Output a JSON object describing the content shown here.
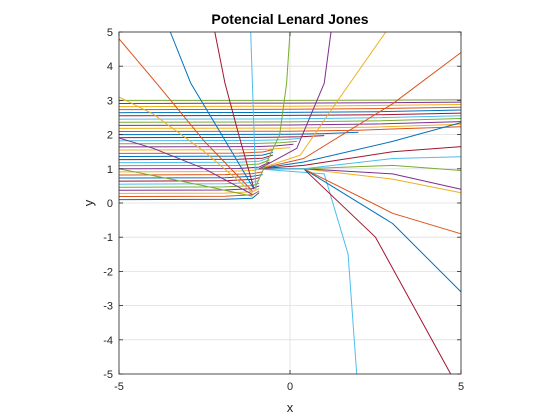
{
  "chart_data": {
    "type": "line",
    "title": "Potencial Lenard Jones",
    "xlabel": "x",
    "ylabel": "y",
    "xlim": [
      -5,
      5
    ],
    "ylim": [
      -5,
      5
    ],
    "xticks": [
      "-5",
      "0",
      "5"
    ],
    "yticks": [
      "-5",
      "-4",
      "-3",
      "-2",
      "-1",
      "0",
      "1",
      "2",
      "3",
      "4",
      "5"
    ],
    "grid": true,
    "colors": [
      "#0072BD",
      "#D95319",
      "#EDB120",
      "#7E2F8E",
      "#77AC30",
      "#4DBEEE",
      "#A2142F"
    ],
    "series": [
      {
        "x": [
          -5,
          -1.9,
          -1.1,
          -0.9
        ],
        "y": [
          0.1,
          0.11,
          0.14,
          0.3
        ]
      },
      {
        "x": [
          -5,
          -1.9,
          -1.1,
          -0.9
        ],
        "y": [
          0.19,
          0.2,
          0.24,
          0.35
        ]
      },
      {
        "x": [
          -5,
          -1.9,
          -1.1,
          -0.9
        ],
        "y": [
          0.28,
          0.29,
          0.33,
          0.42
        ]
      },
      {
        "x": [
          -5,
          -1.9,
          -1.1,
          -0.9
        ],
        "y": [
          0.37,
          0.38,
          0.42,
          0.5
        ]
      },
      {
        "x": [
          -5,
          -1.9,
          -1.1,
          -0.9
        ],
        "y": [
          0.46,
          0.47,
          0.51,
          0.58
        ]
      },
      {
        "x": [
          -5,
          -1.9,
          -1.1,
          -0.9
        ],
        "y": [
          0.55,
          0.56,
          0.6,
          0.66
        ]
      },
      {
        "x": [
          -5,
          -1.9,
          -1.1,
          -0.9
        ],
        "y": [
          0.64,
          0.65,
          0.69,
          0.74
        ]
      },
      {
        "x": [
          -5,
          -1.9,
          -1.1,
          -0.8
        ],
        "y": [
          0.73,
          0.74,
          0.78,
          0.83
        ]
      },
      {
        "x": [
          -5,
          -1.9,
          -1.1,
          -0.8
        ],
        "y": [
          0.82,
          0.83,
          0.86,
          0.91
        ]
      },
      {
        "x": [
          -5,
          -1.9,
          -1.1,
          -0.8
        ],
        "y": [
          0.91,
          0.92,
          0.95,
          1.0
        ]
      },
      {
        "x": [
          -5,
          -1.5,
          -0.9,
          -0.6
        ],
        "y": [
          1.0,
          1.01,
          1.05,
          1.2
        ]
      },
      {
        "x": [
          -5,
          -1.5,
          -0.9,
          -0.6
        ],
        "y": [
          1.09,
          1.1,
          1.14,
          1.26
        ]
      },
      {
        "x": [
          -5,
          -1.5,
          -0.9,
          -0.6
        ],
        "y": [
          1.18,
          1.19,
          1.22,
          1.33
        ]
      },
      {
        "x": [
          -5,
          -1.5,
          -0.8,
          -0.5
        ],
        "y": [
          1.27,
          1.28,
          1.31,
          1.4
        ]
      },
      {
        "x": [
          -5,
          -1.5,
          -0.8,
          -0.5
        ],
        "y": [
          1.36,
          1.37,
          1.4,
          1.48
        ]
      },
      {
        "x": [
          -5,
          -1.5,
          -0.8,
          -0.5
        ],
        "y": [
          1.45,
          1.46,
          1.49,
          1.56
        ]
      },
      {
        "x": [
          -5,
          -1.0,
          -0.5,
          0.0
        ],
        "y": [
          1.55,
          1.56,
          1.58,
          1.62
        ]
      },
      {
        "x": [
          -5,
          -1.0,
          -0.4,
          0.1
        ],
        "y": [
          1.64,
          1.65,
          1.67,
          1.72
        ]
      },
      {
        "x": [
          -5,
          -1.0,
          -0.3,
          0.2
        ],
        "y": [
          1.73,
          1.74,
          1.76,
          1.8
        ]
      },
      {
        "x": [
          -5,
          -1.0,
          -0.2,
          0.3
        ],
        "y": [
          1.82,
          1.83,
          1.85,
          1.89
        ]
      },
      {
        "x": [
          -5,
          -0.5,
          0.3,
          1.0
        ],
        "y": [
          1.91,
          1.92,
          1.94,
          1.97
        ]
      },
      {
        "x": [
          -5,
          0.0,
          1.0,
          2.0
        ],
        "y": [
          2.0,
          2.01,
          2.03,
          2.07
        ]
      },
      {
        "x": [
          -5,
          0.0,
          2.0,
          5.0
        ],
        "y": [
          2.09,
          2.1,
          2.13,
          2.23
        ]
      },
      {
        "x": [
          -5,
          0.0,
          2.5,
          5.0
        ],
        "y": [
          2.18,
          2.19,
          2.22,
          2.3
        ]
      },
      {
        "x": [
          -5,
          0.0,
          2.5,
          5.0
        ],
        "y": [
          2.27,
          2.28,
          2.31,
          2.38
        ]
      },
      {
        "x": [
          -5,
          0.0,
          2.5,
          5.0
        ],
        "y": [
          2.36,
          2.37,
          2.4,
          2.47
        ]
      },
      {
        "x": [
          -5,
          0.0,
          2.5,
          5.0
        ],
        "y": [
          2.45,
          2.46,
          2.49,
          2.55
        ]
      },
      {
        "x": [
          -5,
          0.0,
          2.5,
          5.0
        ],
        "y": [
          2.55,
          2.56,
          2.58,
          2.63
        ]
      },
      {
        "x": [
          -5,
          0.0,
          2.5,
          5.0
        ],
        "y": [
          2.64,
          2.65,
          2.67,
          2.72
        ]
      },
      {
        "x": [
          -5,
          0.0,
          2.5,
          5.0
        ],
        "y": [
          2.73,
          2.74,
          2.76,
          2.8
        ]
      },
      {
        "x": [
          -5,
          0.0,
          2.5,
          5.0
        ],
        "y": [
          2.82,
          2.83,
          2.85,
          2.88
        ]
      },
      {
        "x": [
          -5,
          0.0,
          2.5,
          5.0
        ],
        "y": [
          2.91,
          2.92,
          2.93,
          2.95
        ]
      },
      {
        "x": [
          -5,
          0.0,
          2.5,
          5.0
        ],
        "y": [
          3.0,
          3.0,
          3.01,
          3.02
        ]
      },
      {
        "x": [
          -1.0,
          1.0,
          1.7,
          1.95
        ],
        "y": [
          1.0,
          0.85,
          -1.5,
          -5.0
        ]
      },
      {
        "x": [
          -0.9,
          0.4,
          2.5,
          4.7
        ],
        "y": [
          1.0,
          1.0,
          -1.0,
          -5.0
        ]
      },
      {
        "x": [
          -0.9,
          0.4,
          3.0,
          5.0
        ],
        "y": [
          1.0,
          1.0,
          -0.6,
          -2.6
        ]
      },
      {
        "x": [
          -0.9,
          0.4,
          3.0,
          5.0
        ],
        "y": [
          1.0,
          1.0,
          -0.3,
          -0.9
        ]
      },
      {
        "x": [
          -0.9,
          0.4,
          3.0,
          5.0
        ],
        "y": [
          1.0,
          1.0,
          0.7,
          0.3
        ]
      },
      {
        "x": [
          -0.9,
          0.4,
          3.0,
          5.0
        ],
        "y": [
          1.0,
          1.0,
          0.85,
          0.4
        ]
      },
      {
        "x": [
          -0.9,
          0.4,
          3.0,
          5.0
        ],
        "y": [
          1.0,
          1.0,
          1.1,
          0.95
        ]
      },
      {
        "x": [
          -0.9,
          0.4,
          3.0,
          5.0
        ],
        "y": [
          1.0,
          1.0,
          1.3,
          1.35
        ]
      },
      {
        "x": [
          -0.9,
          0.4,
          3.0,
          5.0
        ],
        "y": [
          1.0,
          1.1,
          1.5,
          1.65
        ]
      },
      {
        "x": [
          -0.9,
          0.4,
          3.0,
          5.0
        ],
        "y": [
          1.0,
          1.2,
          1.8,
          2.35
        ]
      },
      {
        "x": [
          -0.9,
          0.4,
          3.0,
          5.0
        ],
        "y": [
          1.0,
          1.3,
          2.9,
          4.4
        ]
      },
      {
        "x": [
          -0.9,
          0.3,
          1.4,
          2.8
        ],
        "y": [
          1.0,
          1.4,
          3.0,
          5.0
        ]
      },
      {
        "x": [
          -0.9,
          0.2,
          1.0,
          1.2
        ],
        "y": [
          1.0,
          1.6,
          3.5,
          5.0
        ]
      },
      {
        "x": [
          -1.0,
          -0.3,
          -0.1,
          0.0
        ],
        "y": [
          0.5,
          2.0,
          3.5,
          5.0
        ]
      },
      {
        "x": [
          -1.0,
          -1.05,
          -1.1,
          -1.15
        ],
        "y": [
          0.4,
          2.0,
          3.5,
          5.0
        ]
      },
      {
        "x": [
          -1.05,
          -1.5,
          -1.9,
          -2.2
        ],
        "y": [
          0.4,
          2.0,
          3.5,
          5.0
        ]
      },
      {
        "x": [
          -1.05,
          -2.0,
          -2.9,
          -3.5
        ],
        "y": [
          0.4,
          2.0,
          3.5,
          5.0
        ]
      },
      {
        "x": [
          -1.1,
          -2.5,
          -3.9,
          -5.0
        ],
        "y": [
          0.35,
          1.8,
          3.5,
          4.8
        ]
      },
      {
        "x": [
          -1.1,
          -2.5,
          -4.0,
          -5.0
        ],
        "y": [
          0.3,
          1.5,
          2.6,
          3.1
        ]
      },
      {
        "x": [
          -1.1,
          -2.5,
          -4.0,
          -5.0
        ],
        "y": [
          0.25,
          1.0,
          1.6,
          1.9
        ]
      },
      {
        "x": [
          -1.1,
          -2.5,
          -4.0,
          -5.0
        ],
        "y": [
          0.2,
          0.5,
          0.8,
          1.0
        ]
      }
    ]
  }
}
